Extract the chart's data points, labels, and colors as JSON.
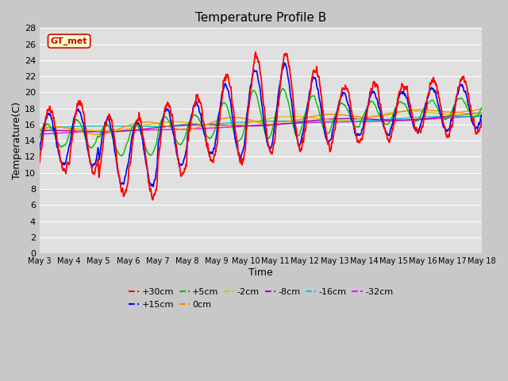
{
  "title": "Temperature Profile B",
  "xlabel": "Time",
  "ylabel": "Temperature(C)",
  "ylim": [
    0,
    28
  ],
  "yticks": [
    0,
    2,
    4,
    6,
    8,
    10,
    12,
    14,
    16,
    18,
    20,
    22,
    24,
    26,
    28
  ],
  "annotation_text": "GT_met",
  "annotation_bg": "#ffffcc",
  "annotation_border": "#cc0000",
  "series_colors": {
    "+30cm": "#ff0000",
    "+15cm": "#0000ff",
    "+5cm": "#00bb00",
    "0cm": "#ff8800",
    "-2cm": "#cccc00",
    "-8cm": "#aa00aa",
    "-16cm": "#00cccc",
    "-32cm": "#ff00ff"
  },
  "x_tick_labels": [
    "May 3",
    "May 4",
    "May 5",
    "May 6",
    "May 7",
    "May 8",
    "May 9",
    "May 10",
    "May 11",
    "May 12",
    "May 13",
    "May 14",
    "May 15",
    "May 16",
    "May 17",
    "May 18"
  ]
}
